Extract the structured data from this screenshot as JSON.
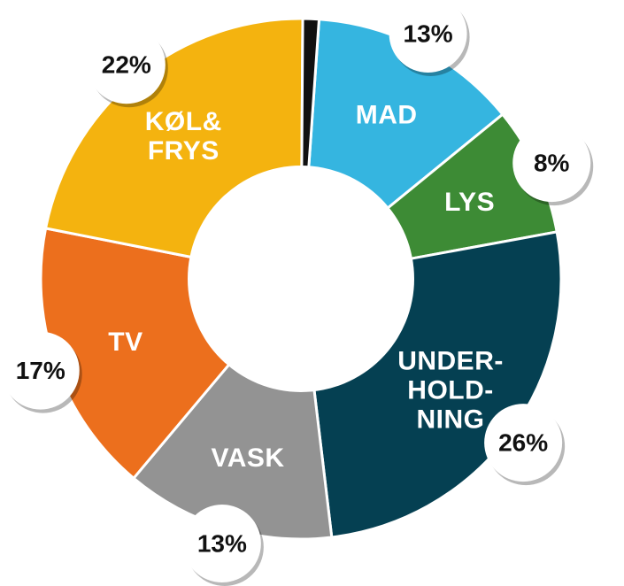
{
  "chart_data": {
    "type": "pie",
    "variant": "donut",
    "slices": [
      {
        "label": "MAD",
        "label_lines": [
          "MAD"
        ],
        "value": 13,
        "display": "13%",
        "color": "#35b5e0"
      },
      {
        "label": "LYS",
        "label_lines": [
          "LYS"
        ],
        "value": 8,
        "display": "8%",
        "color": "#3d8b35"
      },
      {
        "label": "UNDER-HOLD-NING",
        "label_lines": [
          "UNDER-",
          "HOLD-",
          "NING"
        ],
        "value": 26,
        "display": "26%",
        "color": "#054052"
      },
      {
        "label": "VASK",
        "label_lines": [
          "VASK"
        ],
        "value": 13,
        "display": "13%",
        "color": "#939393"
      },
      {
        "label": "TV",
        "label_lines": [
          "TV"
        ],
        "value": 17,
        "display": "17%",
        "color": "#ec6f1d"
      },
      {
        "label": "KØL& FRYS",
        "label_lines": [
          "KØL&",
          "FRYS"
        ],
        "value": 22,
        "display": "22%",
        "color": "#f4b30f"
      },
      {
        "label": "",
        "label_lines": [],
        "value": 1,
        "display": "",
        "color": "#111111"
      }
    ]
  }
}
